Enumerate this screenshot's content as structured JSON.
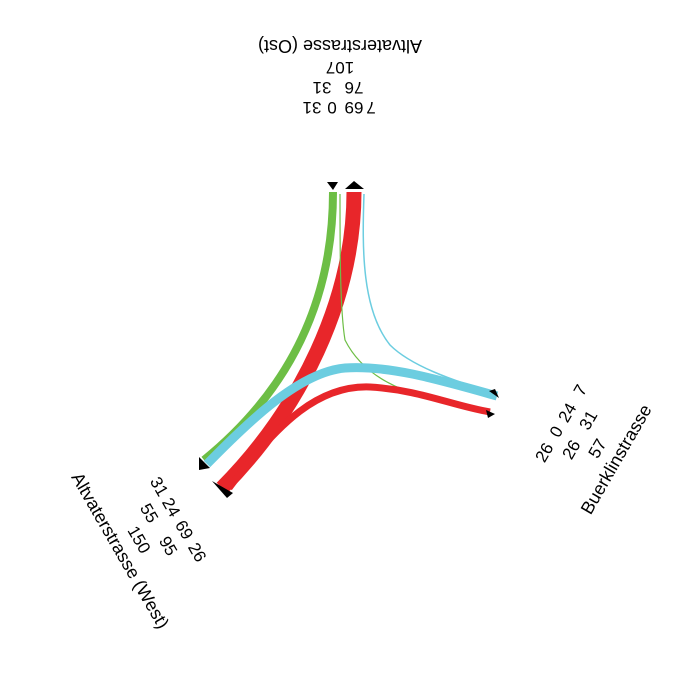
{
  "colors": {
    "red": "#e8262a",
    "green": "#6dbe45",
    "blue": "#6ccde0",
    "marker": "#000000"
  },
  "arms": {
    "ost": {
      "name": "Altvaterstrasse (Ost)",
      "total": "107",
      "row2": [
        "76",
        "31"
      ],
      "row3": [
        "7",
        "69",
        "0",
        "31"
      ]
    },
    "buerklin": {
      "name": "Buerklinstrasse",
      "total": "57",
      "row2": [
        "31",
        "26"
      ],
      "row3": [
        "7",
        "24",
        "0",
        "26"
      ]
    },
    "west": {
      "name": "Altvaterstrasse (West)",
      "total": "150",
      "row2": [
        "55",
        "95"
      ],
      "row3": [
        "31",
        "24",
        "69",
        "26"
      ]
    }
  }
}
